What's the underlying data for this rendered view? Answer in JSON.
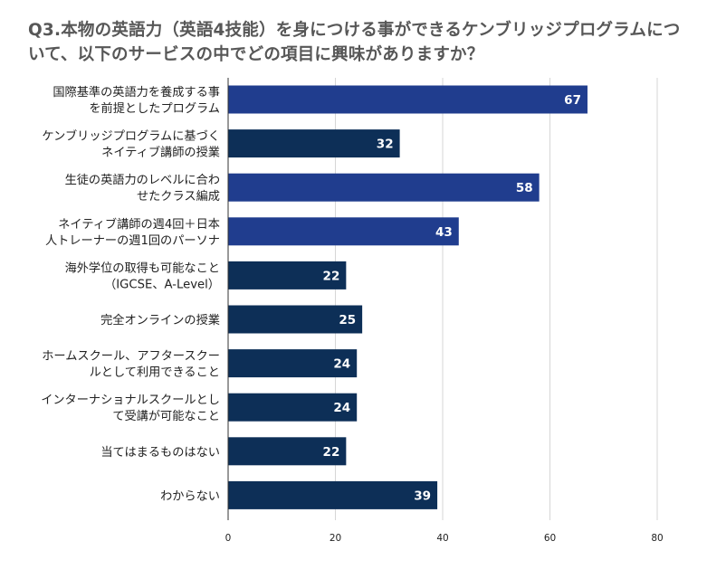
{
  "chart_data": {
    "type": "bar",
    "orientation": "horizontal",
    "title": "Q3.本物の英語力（英語4技能）を身につける事ができるケンブリッジプログラムについて、以下のサービスの中でどの項目に興味がありますか？",
    "xlabel": "",
    "ylabel": "",
    "xlim": [
      0,
      80
    ],
    "ticks": [
      0,
      20,
      40,
      60,
      80
    ],
    "grid": true,
    "legend": "none",
    "categories": [
      [
        "国際基準の英語力を養成する事",
        "を前提としたプログラム"
      ],
      [
        "ケンブリッジプログラムに基づく",
        "ネイティブ講師の授業"
      ],
      [
        "生徒の英語力のレベルに合わ",
        "せたクラス編成"
      ],
      [
        "ネイティブ講師の週4回＋日本",
        "人トレーナーの週1回のパーソナ"
      ],
      [
        "海外学位の取得も可能なこと",
        "（IGCSE、A-Level）"
      ],
      [
        "完全オンラインの授業"
      ],
      [
        "ホームスクール、アフタースクー",
        "ルとして利用できること"
      ],
      [
        "インターナショナルスクールとし",
        "て受講が可能なこと"
      ],
      [
        "当てはまるものはない"
      ],
      [
        "わからない"
      ]
    ],
    "values": [
      67,
      32,
      58,
      43,
      22,
      25,
      24,
      24,
      22,
      39
    ],
    "colors": [
      "#203d8e",
      "#0d2f57",
      "#203d8e",
      "#203d8e",
      "#0d2f57",
      "#0d2f57",
      "#0d2f57",
      "#0d2f57",
      "#0d2f57",
      "#0d2f57"
    ],
    "grid_color": "#d6d6d6",
    "axis_color": "#333333"
  }
}
